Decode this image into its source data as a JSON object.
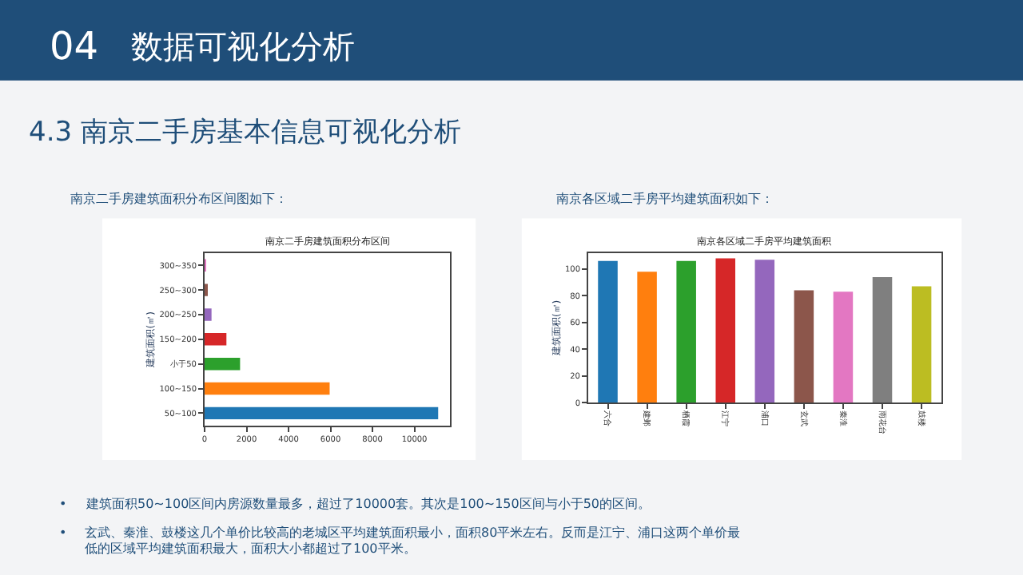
{
  "chart_data": [
    {
      "type": "other",
      "annotations": [
        "04",
        "数据可视化分析",
        "4.3 南京二手房基本信息可视化分析",
        "南京二手房建筑面积分布区间图如下：",
        "南京各区域二手房平均建筑面积如下：",
        "•",
        "建筑面积50~100区间内房源数量最多，超过了10000套。其次是100~150区间与小于50的区间。",
        "•",
        "玄武、秦淮、鼓楼这几个单价比较高的老城区平均建筑面积最小，面积80平米左右。反而是江宁、浦口这两个单价最",
        "低的区域平均建筑面积最大，面积大小都超过了100平米。"
      ]
    },
    {
      "type": "bar",
      "orientation": "horizontal",
      "title": "南京二手房建筑面积分布区间",
      "ylabel": "建筑面积(㎡)",
      "categories": [
        "300~350",
        "250~300",
        "200~250",
        "150~200",
        "小于50",
        "100~150",
        "50~100"
      ],
      "values": [
        20,
        110,
        330,
        1040,
        1690,
        5960,
        11130
      ],
      "colors": [
        "#e377c2",
        "#8c564b",
        "#9467bd",
        "#d62728",
        "#2ca02c",
        "#ff7f0e",
        "#1f77b4"
      ],
      "xlim": [
        0,
        11700
      ],
      "xticks": [
        0,
        2000,
        4000,
        6000,
        8000,
        10000
      ]
    },
    {
      "type": "bar",
      "title": "南京各区域二手房平均建筑面积",
      "ylabel": "建筑面积(㎡)",
      "categories": [
        "六合",
        "建邺",
        "栖霞",
        "江宁",
        "浦口",
        "玄武",
        "秦淮",
        "雨花台",
        "鼓楼"
      ],
      "values": [
        106,
        98,
        106,
        108,
        107,
        84,
        83,
        94,
        87
      ],
      "colors": [
        "#1f77b4",
        "#ff7f0e",
        "#2ca02c",
        "#d62728",
        "#9467bd",
        "#8c564b",
        "#e377c2",
        "#7f7f7f",
        "#bcbd22"
      ],
      "ylim": [
        0,
        112
      ],
      "yticks": [
        0,
        20,
        40,
        60,
        80,
        100
      ]
    }
  ]
}
